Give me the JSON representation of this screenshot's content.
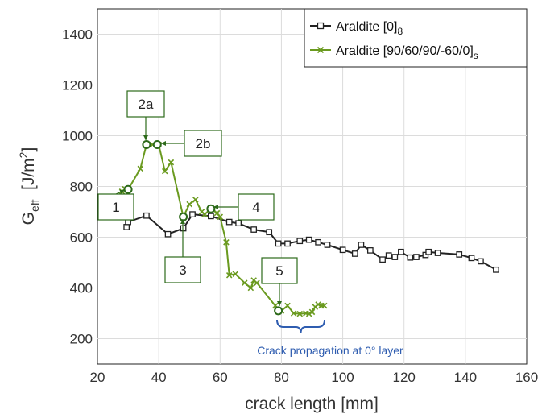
{
  "chart_data": {
    "type": "line",
    "xlabel": "crack length [mm]",
    "ylabel_main": "G",
    "ylabel_sub": "eff",
    "ylabel_unit_prefix": "[J/m",
    "ylabel_unit_sup": "2",
    "ylabel_unit_suffix": "]",
    "xlim": [
      20,
      160
    ],
    "ylim": [
      100,
      1500
    ],
    "xticks": [
      20,
      40,
      60,
      80,
      100,
      120,
      140,
      160
    ],
    "yticks": [
      200,
      400,
      600,
      800,
      1000,
      1200,
      1400
    ],
    "grid": true,
    "legend_position": "top-right",
    "series": [
      {
        "name": "Araldite [0]",
        "name_sub": "8",
        "color": "#222222",
        "marker": "square",
        "x": [
          29.5,
          30,
          36,
          43,
          48,
          51,
          57,
          63,
          66,
          71,
          76,
          79,
          82,
          86,
          89,
          92,
          95,
          100,
          104,
          106,
          109,
          113,
          115,
          117,
          119,
          122,
          124,
          127,
          128,
          131,
          138,
          142,
          145,
          150
        ],
        "y": [
          640,
          660,
          685,
          612,
          635,
          690,
          683,
          660,
          655,
          630,
          620,
          575,
          575,
          585,
          590,
          580,
          570,
          550,
          535,
          570,
          548,
          512,
          528,
          522,
          542,
          520,
          522,
          530,
          542,
          538,
          532,
          518,
          505,
          472
        ]
      },
      {
        "name": "Araldite [90/60/90/-60/0]",
        "name_sub": "s",
        "color": "#6a9a1f",
        "marker": "x",
        "x": [
          28,
          29,
          30,
          34,
          36,
          38,
          40,
          42,
          44,
          48,
          50,
          52,
          54,
          55,
          57,
          59,
          60,
          62,
          63,
          65,
          68,
          70,
          71,
          72,
          78,
          80,
          82,
          84,
          86,
          88,
          89,
          90,
          91,
          92,
          93,
          94
        ],
        "y": [
          780,
          790,
          788,
          870,
          965,
          965,
          965,
          860,
          895,
          680,
          730,
          748,
          700,
          690,
          712,
          695,
          680,
          580,
          450,
          455,
          420,
          400,
          430,
          420,
          330,
          310,
          330,
          300,
          298,
          300,
          298,
          305,
          325,
          335,
          330,
          330
        ]
      }
    ],
    "highlight_points": [
      {
        "label": "1",
        "x": 30,
        "y": 788
      },
      {
        "label": "2a",
        "x": 36,
        "y": 965
      },
      {
        "label": "2b",
        "x": 39.5,
        "y": 965
      },
      {
        "label": "3",
        "x": 48,
        "y": 680
      },
      {
        "label": "4",
        "x": 57,
        "y": 712
      },
      {
        "label": "5",
        "x": 79,
        "y": 310
      }
    ],
    "annotation_note": "Crack propagation at 0° layer"
  }
}
